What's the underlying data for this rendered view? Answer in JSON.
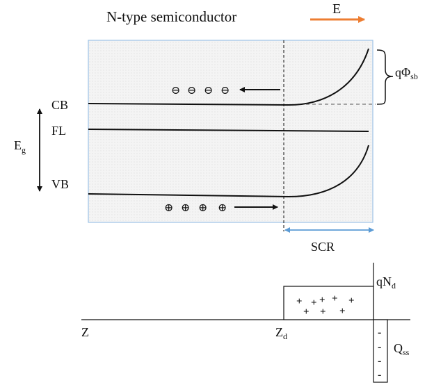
{
  "title": "N-type semiconductor",
  "field": {
    "label": "E",
    "color": "#ed7d31"
  },
  "bands": {
    "cb": "CB",
    "fl": "FL",
    "vb": "VB",
    "gap_main": "E",
    "gap_sub": "g",
    "barrier_main": "qΦ",
    "barrier_sub": "sb"
  },
  "scr": {
    "label": "SCR",
    "color": "#5b9bd5"
  },
  "charge": {
    "donor_main": "qN",
    "donor_sub": "d",
    "surface_main": "Q",
    "surface_sub": "ss",
    "z": "Z",
    "zd_main": "Z",
    "zd_sub": "d"
  },
  "carriers": {
    "electron_symbol": "⊖",
    "hole_symbol": "⊕",
    "electron_count": 4,
    "hole_count": 4
  },
  "charge_signs": {
    "plus": "+",
    "minus": "-"
  },
  "colors": {
    "semiconductor_fill": "#f3f3f3",
    "semiconductor_border": "#9dc3e6"
  }
}
